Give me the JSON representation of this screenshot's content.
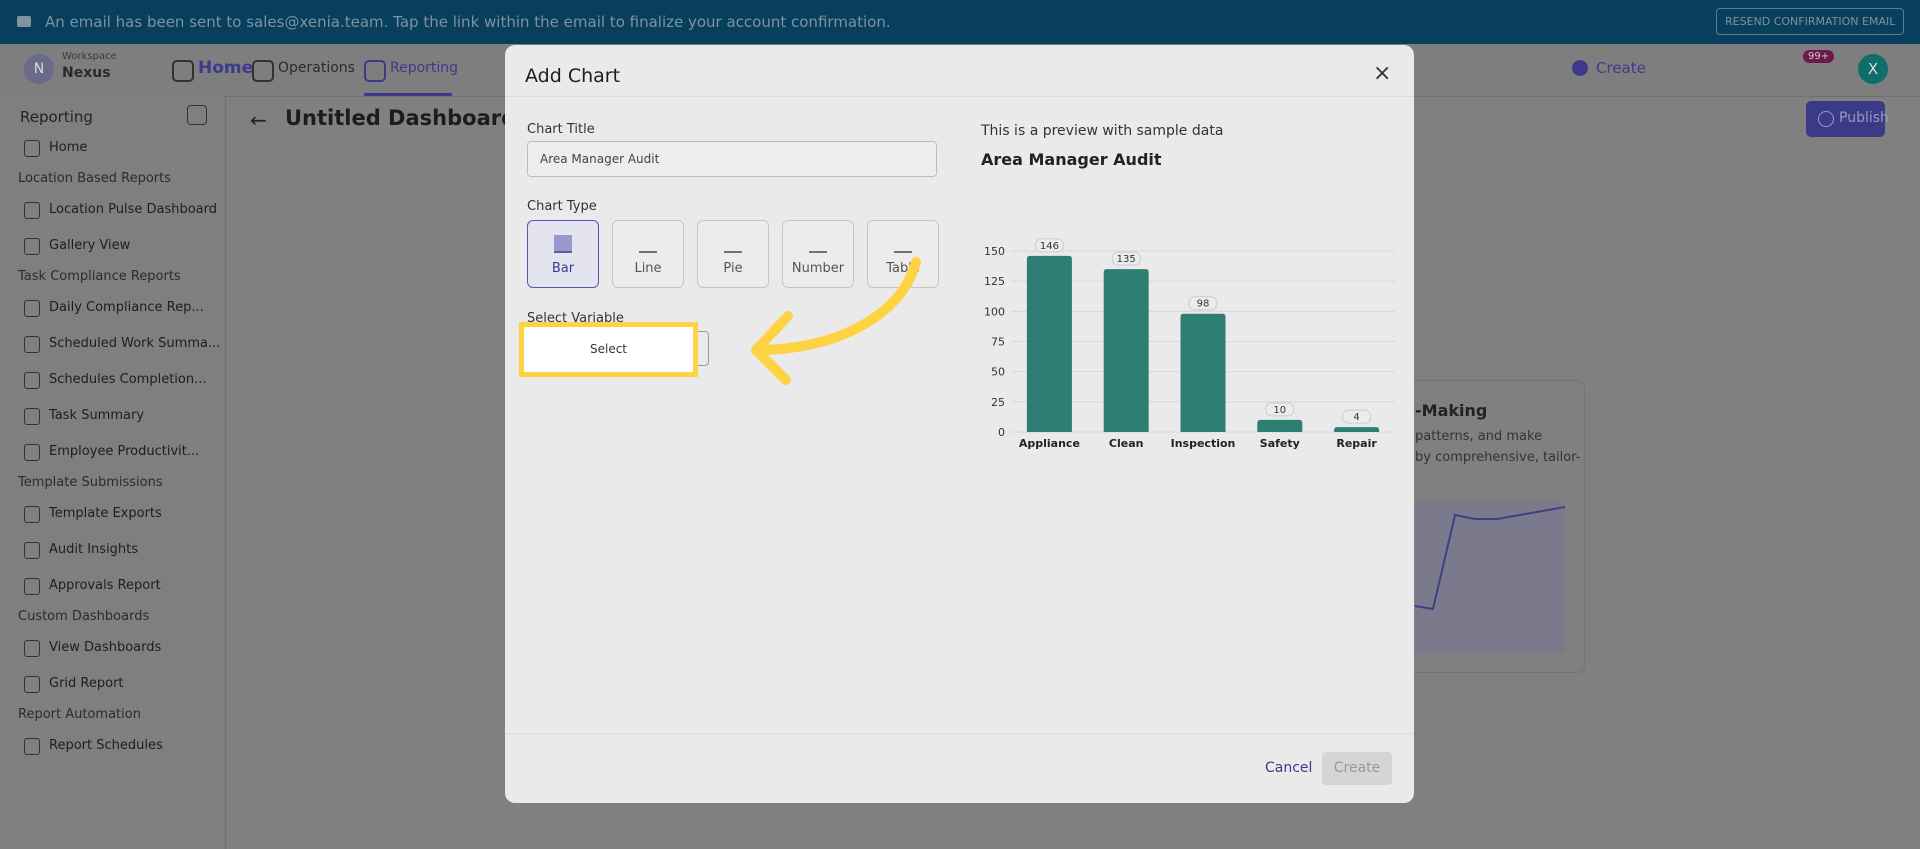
{
  "banner": {
    "message": "An email has been sent to sales@xenia.team. Tap the link within the email to finalize your account confirmation.",
    "button": "RESEND CONFIRMATION EMAIL"
  },
  "topnav": {
    "workspace_label": "Workspace",
    "workspace_name": "Nexus",
    "workspace_initial": "N",
    "tabs": [
      "Home",
      "Operations",
      "Reporting"
    ],
    "create": "Create",
    "notification_count": "99+",
    "user_initial": "X"
  },
  "sidebar": {
    "title": "Reporting",
    "items": [
      {
        "type": "item",
        "label": "Home"
      },
      {
        "type": "section",
        "label": "Location Based Reports"
      },
      {
        "type": "item",
        "label": "Location Pulse Dashboard"
      },
      {
        "type": "item",
        "label": "Gallery View"
      },
      {
        "type": "section",
        "label": "Task Compliance Reports"
      },
      {
        "type": "item",
        "label": "Daily Compliance Rep..."
      },
      {
        "type": "item",
        "label": "Scheduled Work Summa..."
      },
      {
        "type": "item",
        "label": "Schedules Completion..."
      },
      {
        "type": "item",
        "label": "Task Summary"
      },
      {
        "type": "item",
        "label": "Employee Productivit..."
      },
      {
        "type": "section",
        "label": "Template Submissions"
      },
      {
        "type": "item",
        "label": "Template Exports"
      },
      {
        "type": "item",
        "label": "Audit Insights"
      },
      {
        "type": "item",
        "label": "Approvals Report"
      },
      {
        "type": "section",
        "label": "Custom Dashboards"
      },
      {
        "type": "item",
        "label": "View Dashboards"
      },
      {
        "type": "item",
        "label": "Grid Report"
      },
      {
        "type": "section",
        "label": "Report Automation"
      },
      {
        "type": "item",
        "label": "Report Schedules"
      }
    ]
  },
  "page": {
    "title": "Untitled Dashboard",
    "publish": "Publish",
    "card_heading": "-Making",
    "card_lines": [
      "patterns, and make",
      "by comprehensive, tailor-"
    ]
  },
  "modal": {
    "title": "Add Chart",
    "chart_title_label": "Chart Title",
    "chart_title_value": "Area Manager Audit",
    "chart_type_label": "Chart Type",
    "chart_types": [
      "Bar",
      "Line",
      "Pie",
      "Number",
      "Table"
    ],
    "variable_label": "Select Variable",
    "variable_placeholder": "Select",
    "preview_note": "This is a preview with sample data",
    "cancel": "Cancel",
    "create": "Create"
  },
  "chart_data": {
    "type": "bar",
    "title": "Area Manager Audit",
    "categories": [
      "Appliance",
      "Clean",
      "Inspection",
      "Safety",
      "Repair"
    ],
    "values": [
      146,
      135,
      98,
      10,
      4
    ],
    "color": "#2e7f73",
    "ylim": [
      0,
      150
    ],
    "yticks": [
      0,
      25,
      50,
      75,
      100,
      125,
      150
    ],
    "grid": true
  }
}
